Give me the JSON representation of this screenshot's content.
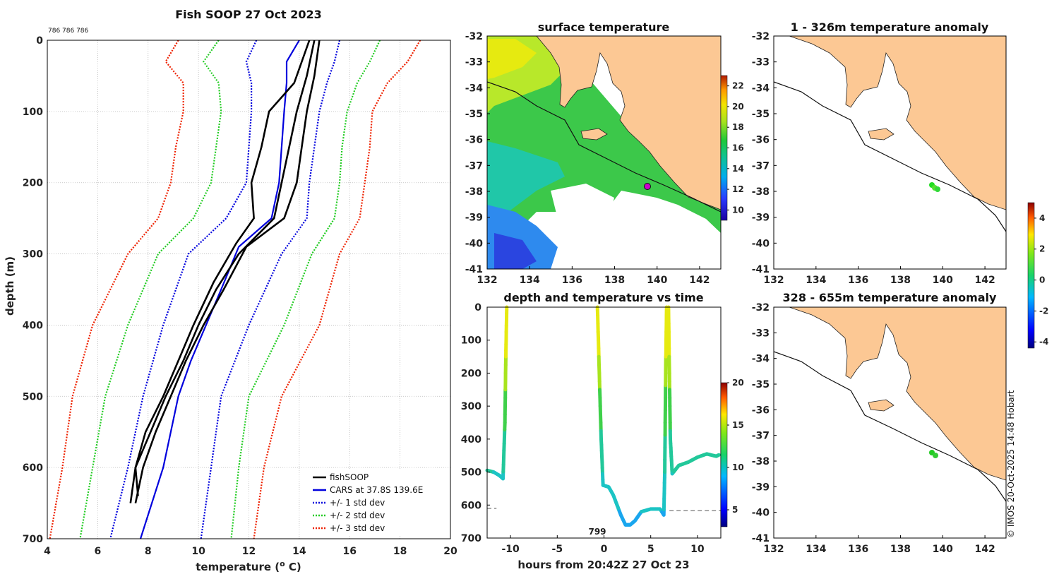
{
  "chart_data": [
    {
      "type": "line",
      "panel": "profile",
      "title": "Fish SOOP 27 Oct 2023",
      "top_note": "786 786 786",
      "xlabel": "temperature (",
      "xlabel_sup": "o",
      "xlabel_tail": " C)",
      "ylabel": "depth (m)",
      "xlim": [
        4,
        20
      ],
      "ylim": [
        700,
        0
      ],
      "xticks": [
        4,
        6,
        8,
        10,
        12,
        14,
        16,
        18,
        20
      ],
      "yticks": [
        0,
        100,
        200,
        300,
        400,
        500,
        600,
        700
      ],
      "legend": [
        "fishSOOP",
        "CARS at 37.8S 139.6E",
        "+/- 1 std dev",
        "+/- 2 std dev",
        "+/- 3 std dev"
      ],
      "series": [
        {
          "name": "CARS mean",
          "color": "#0000dd",
          "dash": false,
          "points": [
            [
              14.0,
              0
            ],
            [
              13.5,
              30
            ],
            [
              13.5,
              60
            ],
            [
              13.4,
              100
            ],
            [
              13.3,
              150
            ],
            [
              13.2,
              200
            ],
            [
              12.9,
              250
            ],
            [
              11.6,
              290
            ],
            [
              10.9,
              350
            ],
            [
              10.3,
              400
            ],
            [
              9.7,
              450
            ],
            [
              9.2,
              500
            ],
            [
              8.6,
              600
            ],
            [
              7.7,
              700
            ]
          ]
        },
        {
          "name": "-1 std",
          "color": "#0000dd",
          "dash": true,
          "points": [
            [
              12.3,
              0
            ],
            [
              11.9,
              30
            ],
            [
              12.1,
              60
            ],
            [
              12.1,
              100
            ],
            [
              12.0,
              150
            ],
            [
              11.9,
              200
            ],
            [
              11.1,
              250
            ],
            [
              9.6,
              300
            ],
            [
              8.6,
              400
            ],
            [
              7.8,
              500
            ],
            [
              7.2,
              600
            ],
            [
              6.5,
              700
            ]
          ]
        },
        {
          "name": "+1 std",
          "color": "#0000dd",
          "dash": true,
          "points": [
            [
              15.6,
              0
            ],
            [
              15.4,
              30
            ],
            [
              15.1,
              60
            ],
            [
              14.8,
              100
            ],
            [
              14.6,
              150
            ],
            [
              14.4,
              200
            ],
            [
              14.3,
              250
            ],
            [
              13.3,
              300
            ],
            [
              12.0,
              400
            ],
            [
              10.9,
              500
            ],
            [
              10.5,
              600
            ],
            [
              10.1,
              700
            ]
          ]
        },
        {
          "name": "-2 std",
          "color": "#22cc22",
          "dash": true,
          "points": [
            [
              10.8,
              0
            ],
            [
              10.2,
              30
            ],
            [
              10.8,
              60
            ],
            [
              10.9,
              100
            ],
            [
              10.7,
              150
            ],
            [
              10.5,
              200
            ],
            [
              9.8,
              250
            ],
            [
              8.4,
              300
            ],
            [
              7.2,
              400
            ],
            [
              6.3,
              500
            ],
            [
              5.8,
              600
            ],
            [
              5.3,
              700
            ]
          ]
        },
        {
          "name": "+2 std",
          "color": "#22cc22",
          "dash": true,
          "points": [
            [
              17.2,
              0
            ],
            [
              16.8,
              30
            ],
            [
              16.3,
              60
            ],
            [
              15.9,
              100
            ],
            [
              15.7,
              150
            ],
            [
              15.6,
              200
            ],
            [
              15.4,
              250
            ],
            [
              14.5,
              300
            ],
            [
              13.4,
              400
            ],
            [
              12.0,
              500
            ],
            [
              11.6,
              600
            ],
            [
              11.3,
              700
            ]
          ]
        },
        {
          "name": "-3 std",
          "color": "#ee2200",
          "dash": true,
          "points": [
            [
              9.2,
              0
            ],
            [
              8.7,
              30
            ],
            [
              9.4,
              60
            ],
            [
              9.4,
              100
            ],
            [
              9.1,
              150
            ],
            [
              8.9,
              200
            ],
            [
              8.4,
              250
            ],
            [
              7.2,
              300
            ],
            [
              5.8,
              400
            ],
            [
              5.0,
              500
            ],
            [
              4.6,
              600
            ],
            [
              4.1,
              700
            ]
          ]
        },
        {
          "name": "+3 std",
          "color": "#ee2200",
          "dash": true,
          "points": [
            [
              18.8,
              0
            ],
            [
              18.3,
              30
            ],
            [
              17.5,
              60
            ],
            [
              16.9,
              100
            ],
            [
              16.8,
              150
            ],
            [
              16.6,
              200
            ],
            [
              16.4,
              250
            ],
            [
              15.6,
              300
            ],
            [
              14.8,
              400
            ],
            [
              13.3,
              500
            ],
            [
              12.6,
              600
            ],
            [
              12.2,
              700
            ]
          ]
        },
        {
          "name": "fishSOOP 1",
          "color": "#000000",
          "dash": false,
          "points": [
            [
              14.8,
              0
            ],
            [
              14.6,
              50
            ],
            [
              14.3,
              100
            ],
            [
              14.1,
              150
            ],
            [
              13.9,
              200
            ],
            [
              13.4,
              250
            ],
            [
              11.9,
              290
            ],
            [
              11.0,
              350
            ],
            [
              10.2,
              400
            ],
            [
              9.5,
              450
            ],
            [
              8.9,
              500
            ],
            [
              8.3,
              550
            ],
            [
              7.8,
              600
            ],
            [
              7.5,
              650
            ]
          ]
        },
        {
          "name": "fishSOOP 2",
          "color": "#000000",
          "dash": false,
          "points": [
            [
              14.6,
              0
            ],
            [
              14.3,
              50
            ],
            [
              13.9,
              100
            ],
            [
              13.6,
              150
            ],
            [
              13.3,
              200
            ],
            [
              13.0,
              250
            ],
            [
              11.6,
              300
            ],
            [
              10.7,
              350
            ],
            [
              10.0,
              400
            ],
            [
              9.4,
              450
            ],
            [
              8.7,
              500
            ],
            [
              8.1,
              550
            ],
            [
              7.5,
              600
            ],
            [
              7.3,
              650
            ]
          ]
        },
        {
          "name": "fishSOOP 3",
          "color": "#000000",
          "dash": false,
          "points": [
            [
              14.4,
              0
            ],
            [
              13.8,
              60
            ],
            [
              12.8,
              100
            ],
            [
              12.5,
              150
            ],
            [
              12.1,
              200
            ],
            [
              12.2,
              250
            ],
            [
              11.5,
              285
            ],
            [
              10.6,
              340
            ],
            [
              9.8,
              400
            ],
            [
              9.2,
              450
            ],
            [
              8.6,
              500
            ],
            [
              7.9,
              550
            ],
            [
              7.5,
              600
            ],
            [
              7.6,
              640
            ]
          ]
        }
      ]
    },
    {
      "type": "heatmap",
      "panel": "surface",
      "title": "surface temperature",
      "xlim": [
        132,
        143
      ],
      "ylim": [
        -41,
        -32
      ],
      "xticks": [
        132,
        134,
        136,
        138,
        140,
        142
      ],
      "yticks": [
        -32,
        -33,
        -34,
        -35,
        -36,
        -37,
        -38,
        -39,
        -40,
        -41
      ],
      "colorbar_ticks": [
        10,
        12,
        14,
        16,
        18,
        20,
        22
      ],
      "marker": [
        139.6,
        -37.8
      ]
    },
    {
      "type": "scatter",
      "panel": "time",
      "title": "depth and temperature vs time",
      "xlabel": "hours from 20:42Z 27 Oct 23",
      "xlim": [
        -12.5,
        12.5
      ],
      "ylim": [
        700,
        0
      ],
      "xticks": [
        -10,
        -5,
        0,
        5,
        10
      ],
      "yticks": [
        0,
        100,
        200,
        300,
        400,
        500,
        600,
        700
      ],
      "colorbar_ticks": [
        5,
        10,
        15,
        20
      ],
      "annotation": "799",
      "bottom_lines": [
        610,
        617
      ]
    },
    {
      "type": "scatter",
      "panel": "anomaly-shallow",
      "title": "1 - 326m temperature anomaly",
      "xlim": [
        132,
        143
      ],
      "ylim": [
        -41,
        -32
      ],
      "xticks": [
        132,
        134,
        136,
        138,
        140,
        142
      ],
      "yticks": [
        -32,
        -33,
        -34,
        -35,
        -36,
        -37,
        -38,
        -39,
        -40,
        -41
      ]
    },
    {
      "type": "scatter",
      "panel": "anomaly-deep",
      "title": "328 - 655m temperature anomaly",
      "xlim": [
        132,
        143
      ],
      "ylim": [
        -41,
        -32
      ],
      "xticks": [
        132,
        134,
        136,
        138,
        140,
        142
      ],
      "yticks": [
        -32,
        -33,
        -34,
        -35,
        -36,
        -37,
        -38,
        -39,
        -40,
        -41
      ],
      "colorbar_ticks": [
        -4,
        -2,
        0,
        2,
        4
      ]
    }
  ],
  "credit": "© IMOS 20-Oct-2025 14:48 Hobart"
}
